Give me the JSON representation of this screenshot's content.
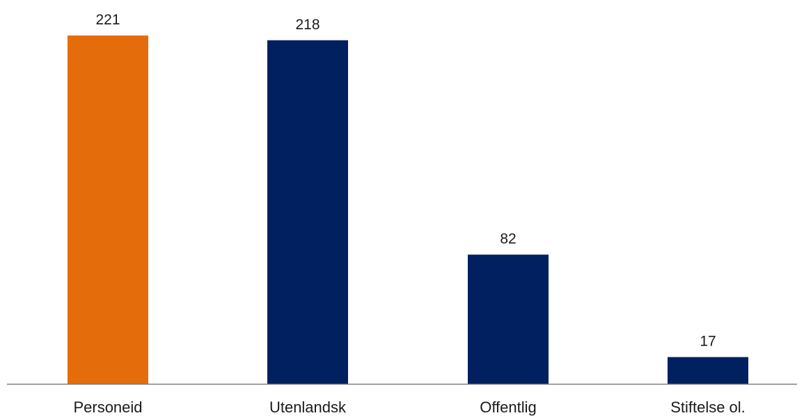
{
  "chart_data": {
    "type": "bar",
    "categories": [
      "Personeid",
      "Utenlandsk",
      "Offentlig",
      "Stiftelse ol."
    ],
    "values": [
      221,
      218,
      82,
      17
    ],
    "data_labels": [
      "221",
      "218",
      "82",
      "17"
    ],
    "bar_colors": [
      "#E46C0A",
      "#002060",
      "#002060",
      "#002060"
    ],
    "axis_color": "#7f7f7f",
    "ylim": [
      0,
      221
    ],
    "title": "",
    "xlabel": "",
    "ylabel": "",
    "grid": false,
    "legend": "none"
  }
}
